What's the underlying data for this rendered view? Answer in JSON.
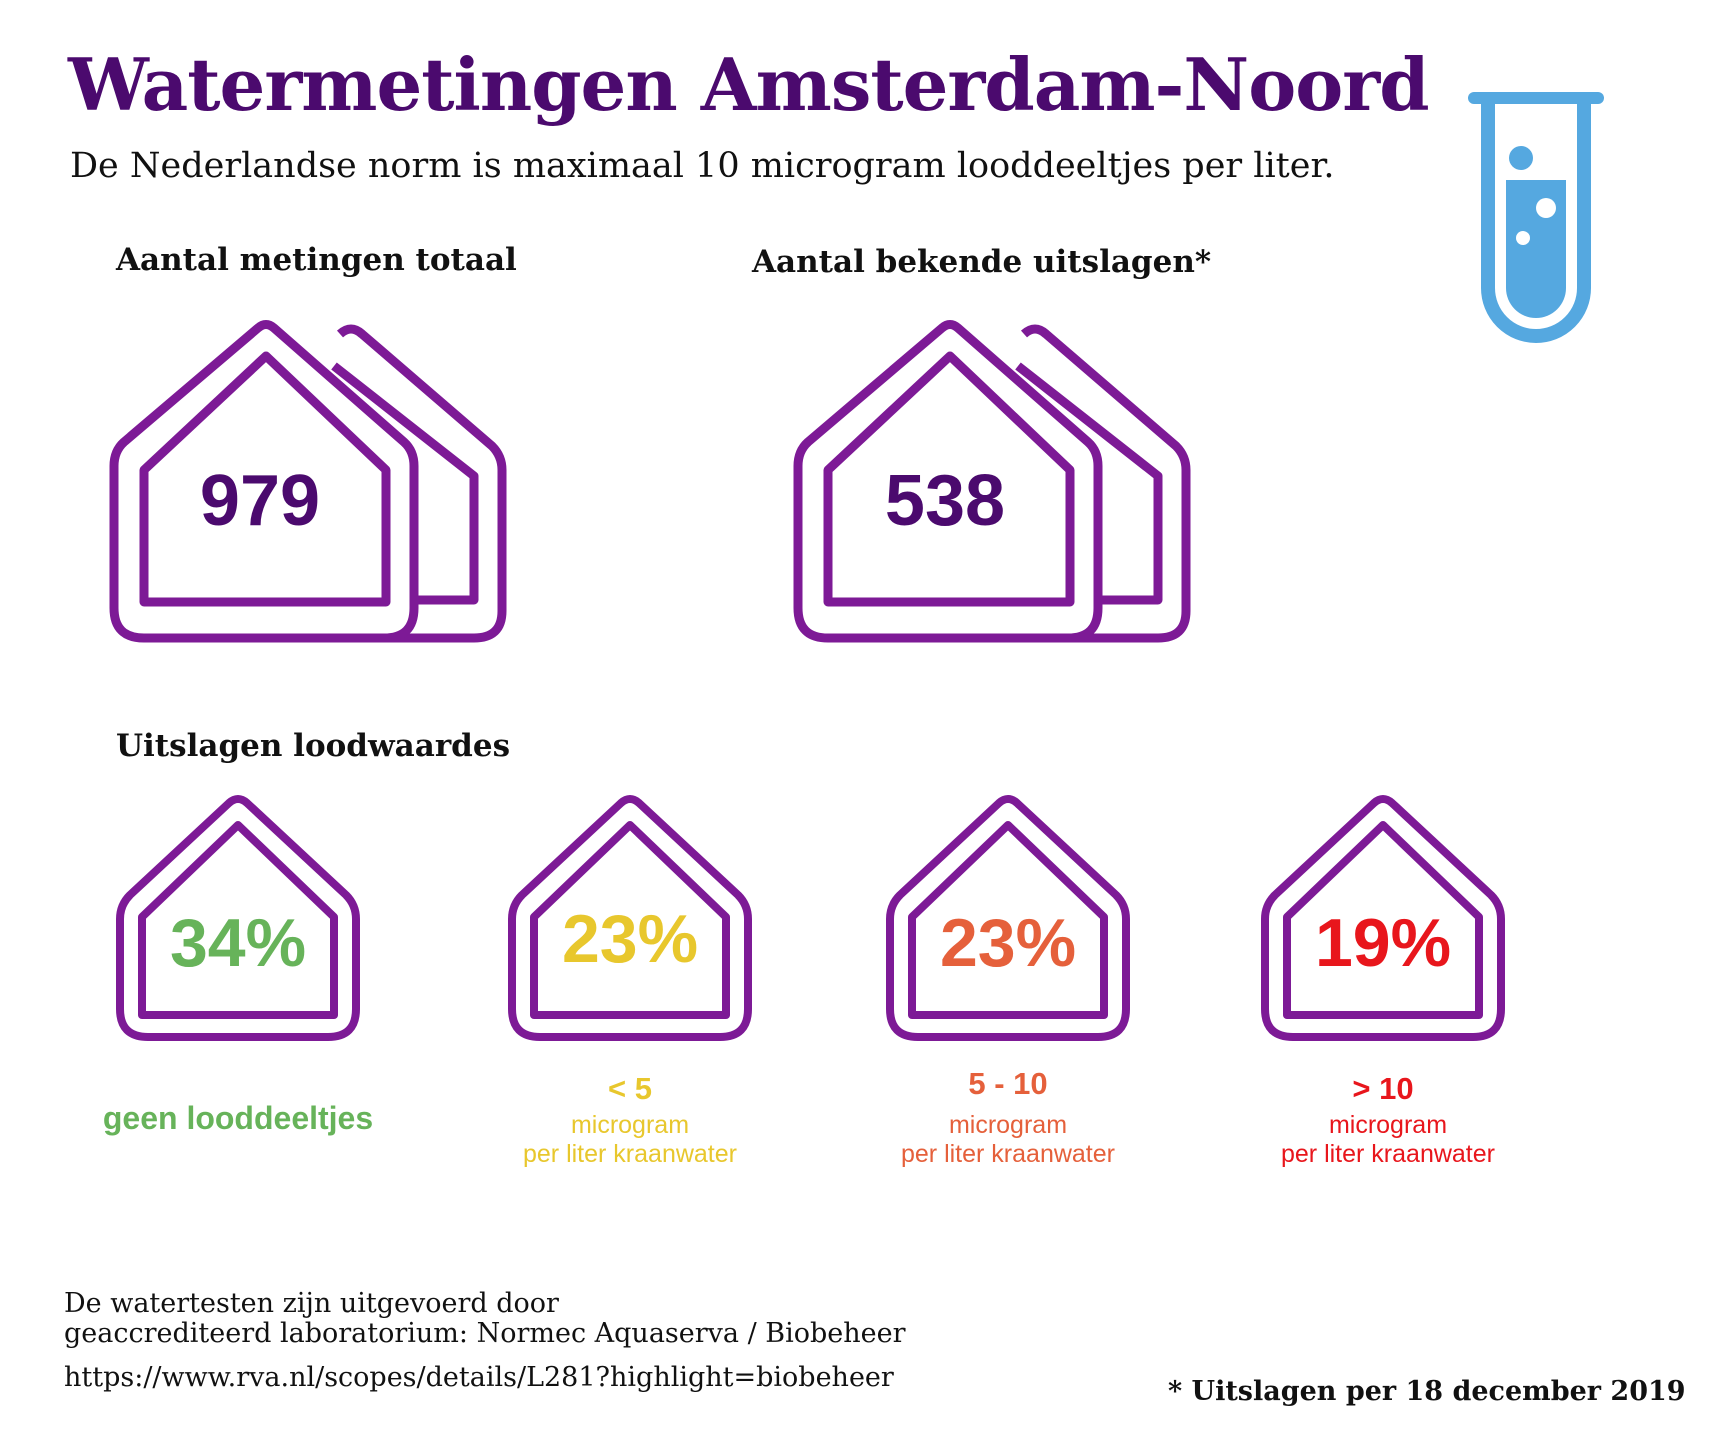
{
  "title": "Watermetingen Amsterdam-Noord",
  "subtitle": "De Nederlandse norm is maximaal 10 microgram looddeeltjes per liter.",
  "totals": {
    "total_heading": "Aantal metingen totaal",
    "total_value": "979",
    "known_heading": "Aantal bekende uitslagen*",
    "known_value": "538"
  },
  "results": {
    "heading": "Uitslagen loodwaardes",
    "categories": [
      {
        "percent": "34%",
        "range": "",
        "label": "geen looddeeltjes",
        "unit_line1": "",
        "unit_line2": "",
        "color": "#67b35a"
      },
      {
        "percent": "23%",
        "range": "< 5",
        "label": "",
        "unit_line1": "microgram",
        "unit_line2": "per liter kraanwater",
        "color": "#e8c72d"
      },
      {
        "percent": "23%",
        "range": "5 - 10",
        "label": "",
        "unit_line1": "microgram",
        "unit_line2": "per liter kraanwater",
        "color": "#e5603b"
      },
      {
        "percent": "19%",
        "range": "> 10",
        "label": "",
        "unit_line1": "microgram",
        "unit_line2": "per liter kraanwater",
        "color": "#e8161c"
      }
    ]
  },
  "footer": {
    "line1": "De watertesten zijn uitgevoerd door",
    "line2": "geaccrediteerd laboratorium: Normec Aquaserva / Biobeheer",
    "url": "https://www.rva.nl/scopes/details/L281?highlight=biobeheer",
    "note": "* Uitslagen per 18 december 2019"
  },
  "colors": {
    "title": "#4b0a6e",
    "house_outline": "#7d1a96",
    "test_tube": "#55a8e0"
  },
  "icons": [
    "test-tube-icon",
    "double-house-icon",
    "house-icon"
  ]
}
